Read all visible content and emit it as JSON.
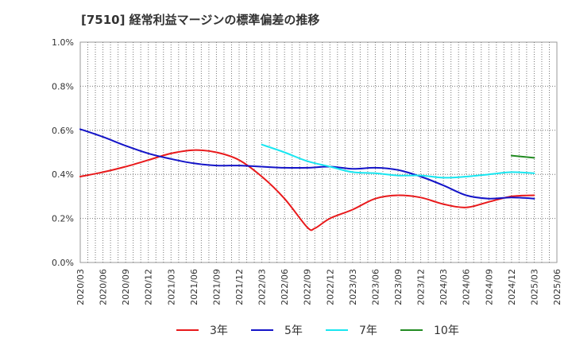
{
  "title": "[7510]  経常利益マージンの標準偏差の推移",
  "chart_data": {
    "type": "line",
    "title": "[7510]  経常利益マージンの標準偏差の推移",
    "xlabel": "",
    "ylabel": "",
    "ylim": [
      0,
      1.0
    ],
    "yticks": [
      "0.0%",
      "0.2%",
      "0.4%",
      "0.6%",
      "0.8%",
      "1.0%"
    ],
    "x": [
      "2020/03",
      "2020/06",
      "2020/09",
      "2020/12",
      "2021/03",
      "2021/06",
      "2021/09",
      "2021/12",
      "2022/03",
      "2022/06",
      "2022/09",
      "2022/12",
      "2023/03",
      "2023/06",
      "2023/09",
      "2023/12",
      "2024/03",
      "2024/06",
      "2024/09",
      "2024/12",
      "2025/03",
      "2025/06"
    ],
    "grid": true,
    "legend_position": "bottom",
    "series": [
      {
        "name": "3年",
        "color": "#e8191b",
        "points": [
          [
            "2020/03",
            0.39
          ],
          [
            "2020/06",
            0.41
          ],
          [
            "2020/09",
            0.435
          ],
          [
            "2020/12",
            0.465
          ],
          [
            "2021/03",
            0.495
          ],
          [
            "2021/06",
            0.51
          ],
          [
            "2021/09",
            0.5
          ],
          [
            "2021/12",
            0.465
          ],
          [
            "2022/03",
            0.39
          ],
          [
            "2022/06",
            0.29
          ],
          [
            "2022/09",
            0.16
          ],
          [
            "2022/10",
            0.155
          ],
          [
            "2022/12",
            0.2
          ],
          [
            "2023/03",
            0.24
          ],
          [
            "2023/06",
            0.29
          ],
          [
            "2023/09",
            0.305
          ],
          [
            "2023/12",
            0.295
          ],
          [
            "2024/03",
            0.265
          ],
          [
            "2024/06",
            0.25
          ],
          [
            "2024/09",
            0.275
          ],
          [
            "2024/12",
            0.3
          ],
          [
            "2025/03",
            0.305
          ]
        ]
      },
      {
        "name": "5年",
        "color": "#1414c8",
        "points": [
          [
            "2020/03",
            0.605
          ],
          [
            "2020/06",
            0.57
          ],
          [
            "2020/09",
            0.53
          ],
          [
            "2020/12",
            0.495
          ],
          [
            "2021/03",
            0.47
          ],
          [
            "2021/06",
            0.45
          ],
          [
            "2021/09",
            0.44
          ],
          [
            "2021/12",
            0.44
          ],
          [
            "2022/03",
            0.435
          ],
          [
            "2022/06",
            0.43
          ],
          [
            "2022/09",
            0.43
          ],
          [
            "2022/12",
            0.435
          ],
          [
            "2023/03",
            0.425
          ],
          [
            "2023/06",
            0.43
          ],
          [
            "2023/09",
            0.42
          ],
          [
            "2023/12",
            0.39
          ],
          [
            "2024/03",
            0.35
          ],
          [
            "2024/06",
            0.305
          ],
          [
            "2024/09",
            0.29
          ],
          [
            "2024/12",
            0.295
          ],
          [
            "2025/03",
            0.29
          ]
        ]
      },
      {
        "name": "7年",
        "color": "#19e6f0",
        "points": [
          [
            "2022/03",
            0.535
          ],
          [
            "2022/06",
            0.5
          ],
          [
            "2022/09",
            0.46
          ],
          [
            "2022/12",
            0.435
          ],
          [
            "2023/03",
            0.41
          ],
          [
            "2023/06",
            0.405
          ],
          [
            "2023/09",
            0.395
          ],
          [
            "2023/12",
            0.395
          ],
          [
            "2024/03",
            0.385
          ],
          [
            "2024/06",
            0.39
          ],
          [
            "2024/09",
            0.4
          ],
          [
            "2024/12",
            0.41
          ],
          [
            "2025/03",
            0.405
          ]
        ]
      },
      {
        "name": "10年",
        "color": "#228b22",
        "points": [
          [
            "2024/12",
            0.485
          ],
          [
            "2025/03",
            0.475
          ]
        ]
      }
    ]
  }
}
